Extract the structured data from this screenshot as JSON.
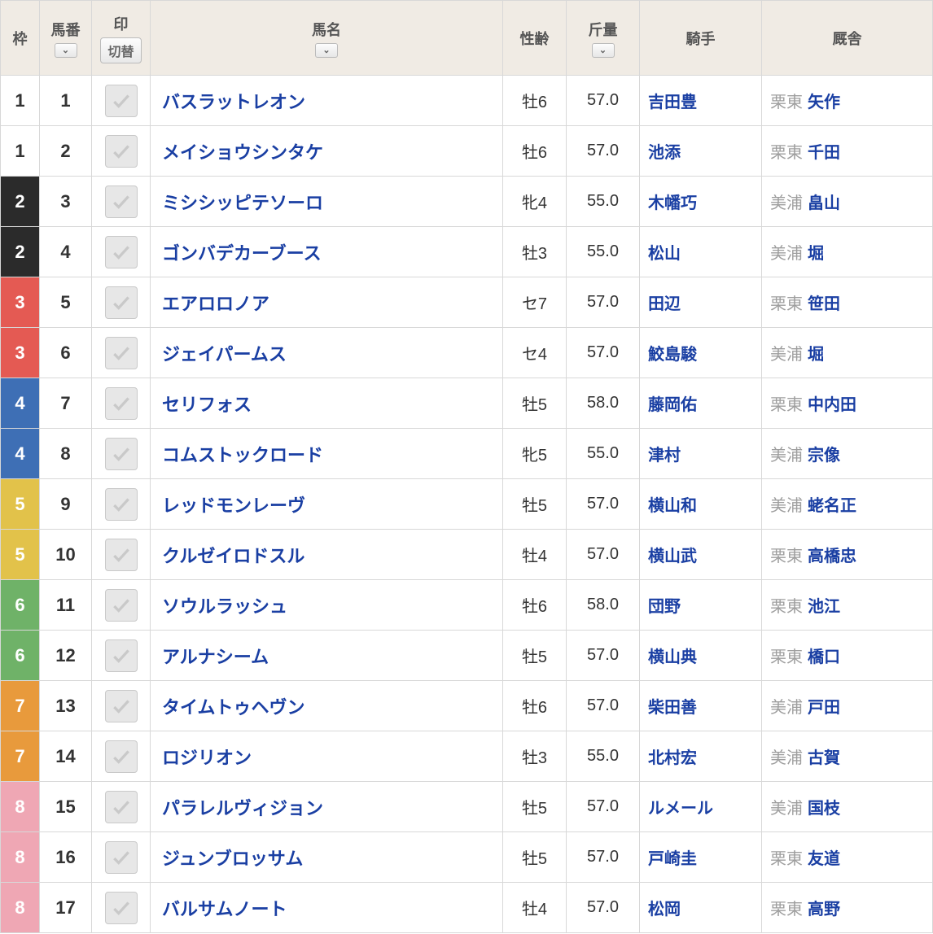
{
  "headers": {
    "waku": "枠",
    "umaban": "馬番",
    "mark": "印",
    "swap": "切替",
    "name": "馬名",
    "sexage": "性齢",
    "weight": "斤量",
    "jockey": "騎手",
    "stable": "厩舎"
  },
  "rows": [
    {
      "waku": 1,
      "num": 1,
      "name": "バスラットレオン",
      "sexage": "牡6",
      "weight": "57.0",
      "jockey": "吉田豊",
      "region": "栗東",
      "trainer": "矢作"
    },
    {
      "waku": 1,
      "num": 2,
      "name": "メイショウシンタケ",
      "sexage": "牡6",
      "weight": "57.0",
      "jockey": "池添",
      "region": "栗東",
      "trainer": "千田"
    },
    {
      "waku": 2,
      "num": 3,
      "name": "ミシシッピテソーロ",
      "sexage": "牝4",
      "weight": "55.0",
      "jockey": "木幡巧",
      "region": "美浦",
      "trainer": "畠山"
    },
    {
      "waku": 2,
      "num": 4,
      "name": "ゴンバデカーブース",
      "sexage": "牡3",
      "weight": "55.0",
      "jockey": "松山",
      "region": "美浦",
      "trainer": "堀"
    },
    {
      "waku": 3,
      "num": 5,
      "name": "エアロロノア",
      "sexage": "セ7",
      "weight": "57.0",
      "jockey": "田辺",
      "region": "栗東",
      "trainer": "笹田"
    },
    {
      "waku": 3,
      "num": 6,
      "name": "ジェイパームス",
      "sexage": "セ4",
      "weight": "57.0",
      "jockey": "鮫島駿",
      "region": "美浦",
      "trainer": "堀"
    },
    {
      "waku": 4,
      "num": 7,
      "name": "セリフォス",
      "sexage": "牡5",
      "weight": "58.0",
      "jockey": "藤岡佑",
      "region": "栗東",
      "trainer": "中内田"
    },
    {
      "waku": 4,
      "num": 8,
      "name": "コムストックロード",
      "sexage": "牝5",
      "weight": "55.0",
      "jockey": "津村",
      "region": "美浦",
      "trainer": "宗像"
    },
    {
      "waku": 5,
      "num": 9,
      "name": "レッドモンレーヴ",
      "sexage": "牡5",
      "weight": "57.0",
      "jockey": "横山和",
      "region": "美浦",
      "trainer": "蛯名正"
    },
    {
      "waku": 5,
      "num": 10,
      "name": "クルゼイロドスル",
      "sexage": "牡4",
      "weight": "57.0",
      "jockey": "横山武",
      "region": "栗東",
      "trainer": "高橋忠"
    },
    {
      "waku": 6,
      "num": 11,
      "name": "ソウルラッシュ",
      "sexage": "牡6",
      "weight": "58.0",
      "jockey": "団野",
      "region": "栗東",
      "trainer": "池江"
    },
    {
      "waku": 6,
      "num": 12,
      "name": "アルナシーム",
      "sexage": "牡5",
      "weight": "57.0",
      "jockey": "横山典",
      "region": "栗東",
      "trainer": "橋口"
    },
    {
      "waku": 7,
      "num": 13,
      "name": "タイムトゥヘヴン",
      "sexage": "牡6",
      "weight": "57.0",
      "jockey": "柴田善",
      "region": "美浦",
      "trainer": "戸田"
    },
    {
      "waku": 7,
      "num": 14,
      "name": "ロジリオン",
      "sexage": "牡3",
      "weight": "55.0",
      "jockey": "北村宏",
      "region": "美浦",
      "trainer": "古賀"
    },
    {
      "waku": 8,
      "num": 15,
      "name": "パラレルヴィジョン",
      "sexage": "牡5",
      "weight": "57.0",
      "jockey": "ルメール",
      "region": "美浦",
      "trainer": "国枝"
    },
    {
      "waku": 8,
      "num": 16,
      "name": "ジュンブロッサム",
      "sexage": "牡5",
      "weight": "57.0",
      "jockey": "戸崎圭",
      "region": "栗東",
      "trainer": "友道"
    },
    {
      "waku": 8,
      "num": 17,
      "name": "バルサムノート",
      "sexage": "牡4",
      "weight": "57.0",
      "jockey": "松岡",
      "region": "栗東",
      "trainer": "高野"
    }
  ]
}
